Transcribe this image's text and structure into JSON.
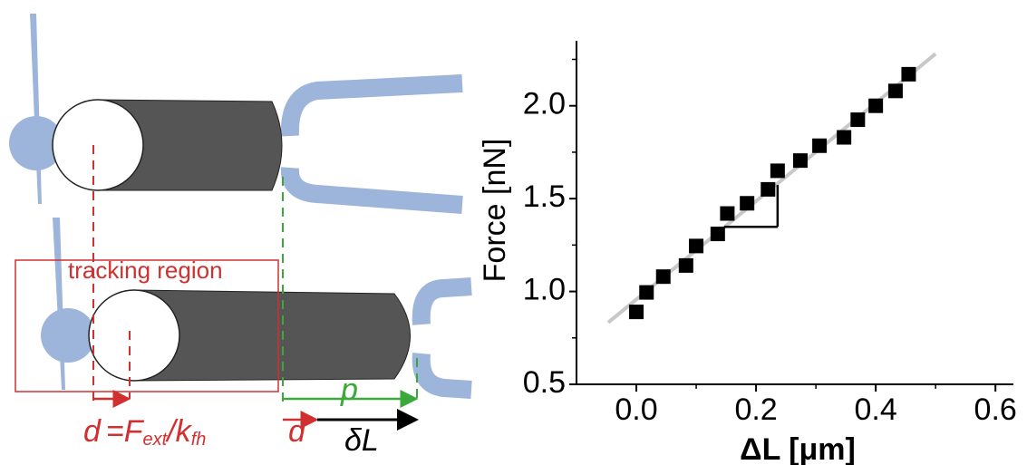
{
  "diagram": {
    "tracking_label": "tracking region",
    "eq_d": "d",
    "eq_f": "=F",
    "eq_ext": "ext",
    "eq_k": "/k",
    "eq_fh": "fh",
    "d2": "d",
    "p": "p",
    "delta_l": "δL"
  },
  "chart_data": {
    "type": "scatter",
    "x_label": "ΔL [μm]",
    "y_label": "Force [nN]",
    "x": [
      0.0,
      0.017,
      0.045,
      0.083,
      0.1,
      0.136,
      0.152,
      0.185,
      0.22,
      0.236,
      0.274,
      0.306,
      0.347,
      0.37,
      0.4,
      0.433,
      0.455
    ],
    "values": [
      0.89,
      0.995,
      1.08,
      1.14,
      1.245,
      1.31,
      1.42,
      1.475,
      1.55,
      1.65,
      1.705,
      1.785,
      1.83,
      1.925,
      2.0,
      2.08,
      2.17
    ],
    "color": "#000000",
    "fit_line": {
      "x": [
        -0.047,
        0.5
      ],
      "y": [
        0.833,
        2.28
      ],
      "color": "#c8c8c8"
    },
    "slope_triangle": {
      "x": [
        0.147,
        0.236
      ],
      "y": [
        1.348,
        1.574
      ]
    },
    "xlim": [
      -0.1,
      0.63
    ],
    "ylim": [
      0.5,
      2.35
    ],
    "xticks": [
      {
        "value": 0,
        "label": "0.0"
      },
      0.2,
      0.4,
      0.6
    ],
    "yticks": [
      0.5,
      {
        "value": 1,
        "label": "1.0"
      },
      1.5,
      {
        "value": 2,
        "label": "2.0"
      }
    ],
    "xticks_minor": [
      0.1,
      0.3,
      0.5
    ],
    "yticks_minor": [
      0.75,
      1.25,
      1.75,
      2.25
    ]
  }
}
